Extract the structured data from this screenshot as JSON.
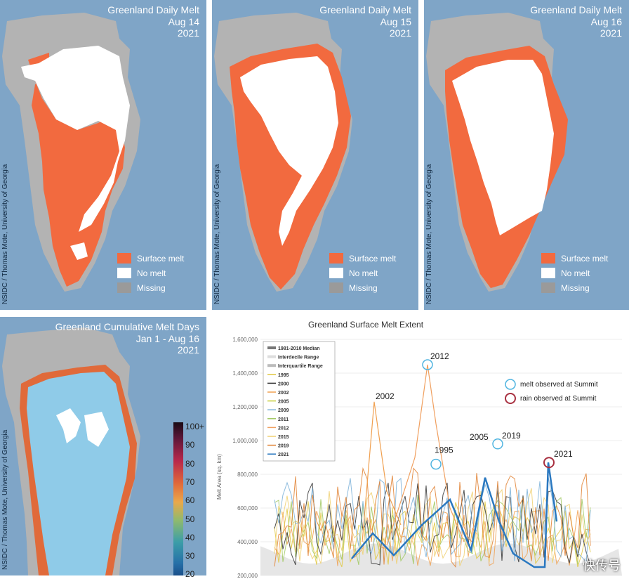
{
  "panels": [
    {
      "title_line1": "Greenland Daily Melt",
      "title_line2": "Aug 14",
      "title_line3": "2021"
    },
    {
      "title_line1": "Greenland Daily Melt",
      "title_line2": "Aug 15",
      "title_line3": "2021"
    },
    {
      "title_line1": "Greenland Daily Melt",
      "title_line2": "Aug 16",
      "title_line3": "2021"
    }
  ],
  "cumulative": {
    "title_line1": "Greenland Cumulative Melt Days",
    "title_line2": "Jan 1 - Aug 16",
    "title_line3": "2021",
    "colorbar_labels": [
      "100+",
      "90",
      "80",
      "70",
      "60",
      "50",
      "40",
      "30",
      "20"
    ]
  },
  "credit": "NSIDC / Thomas Mote, University of Georgia",
  "legend": {
    "surface_melt": "Surface melt",
    "no_melt": "No melt",
    "missing": "Missing"
  },
  "colors": {
    "ocean": "#7fa5c7",
    "land": "#b3b3b3",
    "melt": "#f26a3f",
    "no_melt": "#ffffff",
    "missing": "#9a9a9a"
  },
  "watermark": "快传号",
  "chart_data": {
    "type": "line",
    "title": "Greenland Surface Melt Extent",
    "ylabel": "Melt Area (sq. km)",
    "yticks": [
      "1,600,000",
      "1,400,000",
      "1,200,000",
      "1,000,000",
      "800,000",
      "600,000",
      "400,000",
      "200,000"
    ],
    "ylim": [
      200000,
      1600000
    ],
    "legend_items": [
      "1981-2010 Median",
      "Interdecile Range",
      "Interquartile Range",
      "1995",
      "2000",
      "2002",
      "2005",
      "2009",
      "2011",
      "2012",
      "2015",
      "2019",
      "2021"
    ],
    "legend_colors": [
      "#777777",
      "#dddddd",
      "#bbbbbb",
      "#e0c840",
      "#333333",
      "#f0a050",
      "#c8d040",
      "#7ab0d8",
      "#a0c860",
      "#f0a060",
      "#f0d070",
      "#e08030",
      "#2a78c0"
    ],
    "summit_melt": "melt observed at Summit",
    "summit_rain": "rain observed at Summit",
    "annotations": [
      {
        "label": "2012",
        "y": 1450000
      },
      {
        "label": "2002",
        "y": 1230000
      },
      {
        "label": "1995",
        "y": 860000
      },
      {
        "label": "2005",
        "y": 980000
      },
      {
        "label": "2019",
        "y": 980000
      },
      {
        "label": "2021",
        "y": 870000
      }
    ]
  }
}
